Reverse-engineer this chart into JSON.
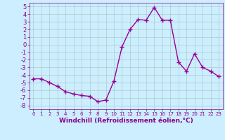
{
  "x": [
    0,
    1,
    2,
    3,
    4,
    5,
    6,
    7,
    8,
    9,
    10,
    11,
    12,
    13,
    14,
    15,
    16,
    17,
    18,
    19,
    20,
    21,
    22,
    23
  ],
  "y": [
    -4.5,
    -4.5,
    -5.0,
    -5.5,
    -6.2,
    -6.5,
    -6.7,
    -6.8,
    -7.5,
    -7.3,
    -4.8,
    -0.3,
    2.0,
    3.3,
    3.2,
    4.9,
    3.2,
    3.2,
    -2.3,
    -3.5,
    -1.2,
    -3.0,
    -3.5,
    -4.2
  ],
  "line_color": "#990099",
  "marker": "+",
  "marker_size": 4,
  "linewidth": 1.0,
  "bg_color": "#cceeff",
  "grid_color": "#aacccc",
  "xlabel": "Windchill (Refroidissement éolien,°C)",
  "xlabel_fontsize": 6.5,
  "xlim": [
    -0.5,
    23.5
  ],
  "ylim": [
    -8.5,
    5.5
  ],
  "yticks": [
    -8,
    -7,
    -6,
    -5,
    -4,
    -3,
    -2,
    -1,
    0,
    1,
    2,
    3,
    4,
    5
  ],
  "xticks": [
    0,
    1,
    2,
    3,
    4,
    5,
    6,
    7,
    8,
    9,
    10,
    11,
    12,
    13,
    14,
    15,
    16,
    17,
    18,
    19,
    20,
    21,
    22,
    23
  ],
  "xtick_fontsize": 5.0,
  "ytick_fontsize": 6.0,
  "tick_color": "#880088"
}
